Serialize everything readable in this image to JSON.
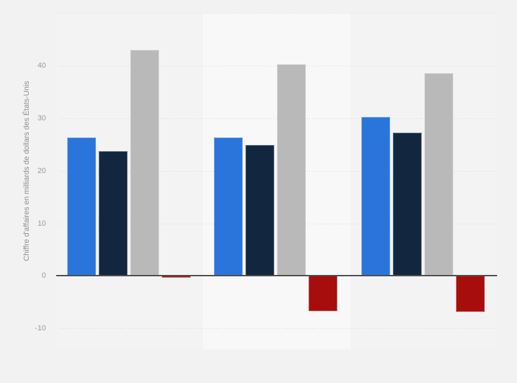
{
  "chart_data": {
    "type": "bar",
    "title": "",
    "xlabel": "",
    "ylabel": "Chiffre d'affaires en milliards de dollars des États-Unis",
    "ylim": [
      -14,
      50
    ],
    "grid": true,
    "legend": "none",
    "categories": [
      "",
      "",
      ""
    ],
    "yticks": [
      {
        "value": 50,
        "label": ""
      },
      {
        "value": 40,
        "label": "40"
      },
      {
        "value": 30,
        "label": "30"
      },
      {
        "value": 20,
        "label": "20"
      },
      {
        "value": 10,
        "label": "10"
      },
      {
        "value": 0,
        "label": "0"
      },
      {
        "value": -10,
        "label": "-10"
      }
    ],
    "series": [
      {
        "name": "series-blue",
        "color": "#2a75dc",
        "values": [
          26.3,
          26.3,
          30.2
        ]
      },
      {
        "name": "series-dark-navy",
        "color": "#12273f",
        "values": [
          23.7,
          24.9,
          27.2
        ]
      },
      {
        "name": "series-gray",
        "color": "#b9b9b9",
        "values": [
          43.0,
          40.3,
          38.6
        ]
      },
      {
        "name": "series-dark-red",
        "color": "#a80d0d",
        "values": [
          -0.3,
          -6.7,
          -6.8
        ]
      }
    ],
    "highlighted_category_index": 1,
    "colors": {
      "page_bg": "#f2f2f2",
      "plot_bg": "#f3f3f3",
      "highlight_band": "#f8f8f8",
      "gridline": "#d4d4d4",
      "zero_line": "#4d4d4d",
      "tick_label": "#999999",
      "axis_title": "#8f8f8f"
    }
  }
}
